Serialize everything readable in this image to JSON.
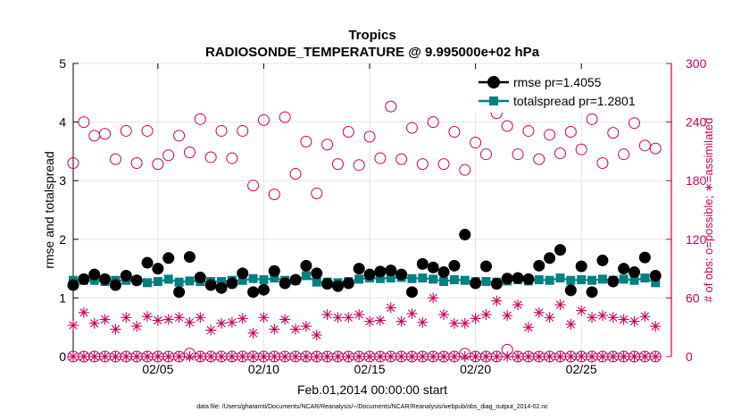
{
  "chart_data": {
    "type": "scatter",
    "title": "Tropics",
    "subtitle": "RADIOSONDE_TEMPERATURE @ 9.995000e+02 hPa",
    "xlabel": "Feb.01,2014 00:00:00 start",
    "ylabel_left": "rmse and totalspread",
    "ylabel_right": "# of obs: o=possible; ∗=assimilated",
    "footnote": "data file: /Users/gharamti/Documents/NCAR/Reanalysis/~/Documents/NCAR/Reanalysis/webpub/obs_diag_output_2014-02.nc",
    "xlim": [
      1,
      29.25
    ],
    "ylim_left": [
      0,
      5
    ],
    "ylim_right": [
      0,
      300
    ],
    "x_ticks": [
      5,
      10,
      15,
      20,
      25
    ],
    "x_tick_labels": [
      "02/05",
      "02/10",
      "02/15",
      "02/20",
      "02/25"
    ],
    "y_left_ticks": [
      "0",
      "1",
      "2",
      "3",
      "4",
      "5"
    ],
    "y_right_ticks": [
      "0",
      "60",
      "120",
      "180",
      "240",
      "300"
    ],
    "grid": true,
    "legend_position": "top-right",
    "legend": [
      "rmse pr=1.4055",
      "totalspread pr=1.2801"
    ],
    "x": [
      1.0,
      1.5,
      2.0,
      2.5,
      3.0,
      3.5,
      4.0,
      4.5,
      5.0,
      5.5,
      6.0,
      6.5,
      7.0,
      7.5,
      8.0,
      8.5,
      9.0,
      9.5,
      10.0,
      10.5,
      11.0,
      11.5,
      12.0,
      12.5,
      13.0,
      13.5,
      14.0,
      14.5,
      15.0,
      15.5,
      16.0,
      16.5,
      17.0,
      17.5,
      18.0,
      18.5,
      19.0,
      19.5,
      20.0,
      20.5,
      21.0,
      21.5,
      22.0,
      22.5,
      23.0,
      23.5,
      24.0,
      24.5,
      25.0,
      25.5,
      26.0,
      26.5,
      27.0,
      27.5,
      28.0,
      28.5
    ],
    "series": [
      {
        "name": "rmse",
        "axis": "left",
        "color": "#000000",
        "marker": "filled-circle",
        "values": [
          1.22,
          1.32,
          1.4,
          1.32,
          1.22,
          1.38,
          1.3,
          1.6,
          1.5,
          1.68,
          1.1,
          1.7,
          1.35,
          1.22,
          1.17,
          1.25,
          1.42,
          1.1,
          1.14,
          1.46,
          1.25,
          1.31,
          1.55,
          1.42,
          1.24,
          1.2,
          1.25,
          1.5,
          1.4,
          1.45,
          1.47,
          1.4,
          1.1,
          1.58,
          1.52,
          1.44,
          1.55,
          2.08,
          1.25,
          1.54,
          1.24,
          1.33,
          1.34,
          1.32,
          1.55,
          1.68,
          1.82,
          1.13,
          1.54,
          1.1,
          1.64,
          1.28,
          1.5,
          1.44,
          1.69,
          1.38
        ]
      },
      {
        "name": "totalspread",
        "axis": "left",
        "color": "#008080",
        "marker": "filled-square",
        "values": [
          1.3,
          1.3,
          1.3,
          1.28,
          1.3,
          1.3,
          1.3,
          1.26,
          1.28,
          1.32,
          1.27,
          1.29,
          1.28,
          1.28,
          1.28,
          1.3,
          1.3,
          1.33,
          1.31,
          1.34,
          1.3,
          1.3,
          1.38,
          1.27,
          1.27,
          1.26,
          1.28,
          1.32,
          1.34,
          1.33,
          1.34,
          1.35,
          1.33,
          1.34,
          1.32,
          1.28,
          1.31,
          1.3,
          1.28,
          1.28,
          1.27,
          1.29,
          1.31,
          1.29,
          1.31,
          1.3,
          1.34,
          1.3,
          1.31,
          1.3,
          1.32,
          1.3,
          1.32,
          1.3,
          1.34,
          1.26
        ]
      },
      {
        "name": "possible",
        "axis": "right",
        "color": "#c8005a",
        "marker": "open-circle",
        "values": [
          198,
          240,
          226,
          228,
          202,
          231,
          198,
          231,
          197,
          206,
          226,
          209,
          243,
          204,
          231,
          203,
          231,
          175,
          242,
          166,
          245,
          187,
          220,
          167,
          217,
          197,
          230,
          196,
          225,
          203,
          256,
          202,
          234,
          197,
          240,
          197,
          230,
          191,
          219,
          207,
          249,
          236,
          207,
          231,
          202,
          227,
          208,
          230,
          212,
          243,
          198,
          229,
          207,
          239,
          216,
          213
        ]
      },
      {
        "name": "possible-zero",
        "axis": "right",
        "color": "#c8005a",
        "marker": "open-circle",
        "values": [
          0,
          0,
          0,
          0,
          0,
          0,
          0,
          0,
          0,
          0,
          0,
          3,
          0,
          0,
          0,
          0,
          0,
          0,
          0,
          0,
          0,
          0,
          0,
          0,
          0,
          0,
          0,
          0,
          0,
          0,
          0,
          0,
          0,
          0,
          0,
          0,
          0,
          3,
          0,
          0,
          0,
          7,
          0,
          0,
          0,
          0,
          0,
          0,
          0,
          0,
          0,
          0,
          0,
          0,
          0,
          0
        ]
      },
      {
        "name": "assimilated",
        "axis": "right",
        "color": "#c8005a",
        "marker": "asterisk",
        "values": [
          32,
          45,
          34,
          38,
          28,
          40,
          31,
          41,
          37,
          38,
          40,
          35,
          40,
          27,
          34,
          35,
          39,
          24,
          40,
          28,
          38,
          28,
          31,
          22,
          43,
          40,
          40,
          43,
          36,
          37,
          50,
          36,
          44,
          35,
          60,
          43,
          34,
          34,
          39,
          43,
          57,
          42,
          53,
          30,
          45,
          40,
          53,
          33,
          47,
          40,
          42,
          40,
          38,
          36,
          41,
          31
        ]
      },
      {
        "name": "assimilated-zero",
        "axis": "right",
        "color": "#c8005a",
        "marker": "asterisk",
        "values": [
          0,
          0,
          0,
          0,
          0,
          0,
          0,
          0,
          0,
          0,
          0,
          0,
          0,
          0,
          0,
          0,
          0,
          0,
          0,
          0,
          0,
          0,
          0,
          0,
          0,
          0,
          0,
          0,
          0,
          0,
          0,
          0,
          0,
          0,
          0,
          0,
          0,
          0,
          0,
          0,
          0,
          0,
          0,
          0,
          0,
          0,
          0,
          0,
          0,
          0,
          0,
          0,
          0,
          0,
          0,
          0
        ]
      }
    ]
  }
}
